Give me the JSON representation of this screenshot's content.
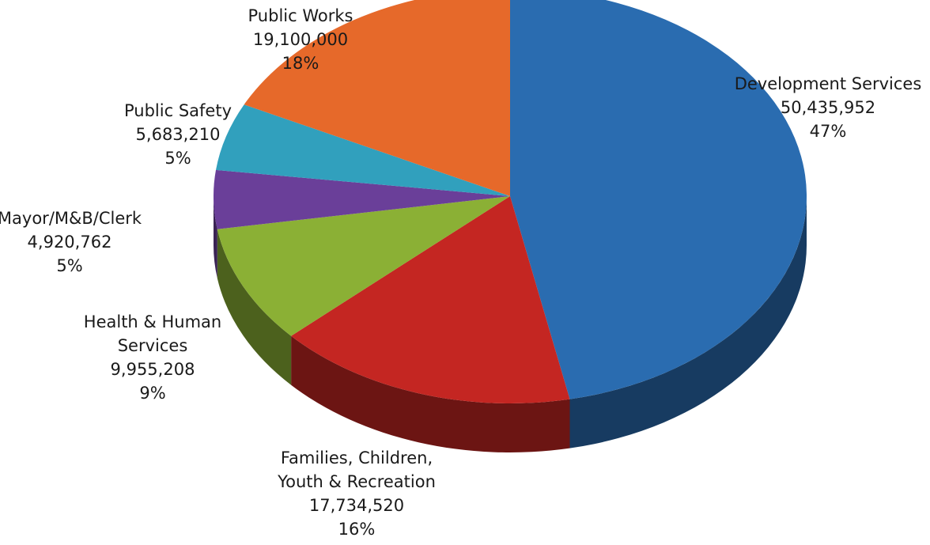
{
  "chart_data": {
    "type": "pie",
    "style": "3d",
    "slices": [
      {
        "label_lines": [
          "Development Services"
        ],
        "amount": "50,435,952",
        "percent": "47%",
        "value": 50435952,
        "color": "#2a6cb0"
      },
      {
        "label_lines": [
          "Families, Children,",
          "Youth & Recreation"
        ],
        "amount": "17,734,520",
        "percent": "16%",
        "value": 17734520,
        "color": "#c42622"
      },
      {
        "label_lines": [
          "Health & Human",
          "Services"
        ],
        "amount": "9,955,208",
        "percent": "9%",
        "value": 9955208,
        "color": "#8bb035"
      },
      {
        "label_lines": [
          "Mayor/M&B/Clerk"
        ],
        "amount": "4,920,762",
        "percent": "5%",
        "value": 4920762,
        "color": "#6a3f99"
      },
      {
        "label_lines": [
          "Public Safety"
        ],
        "amount": "5,683,210",
        "percent": "5%",
        "value": 5683210,
        "color": "#31a0bd"
      },
      {
        "label_lines": [
          "Public Works"
        ],
        "amount": "19,100,000",
        "percent": "18%",
        "value": 19100000,
        "color": "#e6692a"
      }
    ]
  }
}
